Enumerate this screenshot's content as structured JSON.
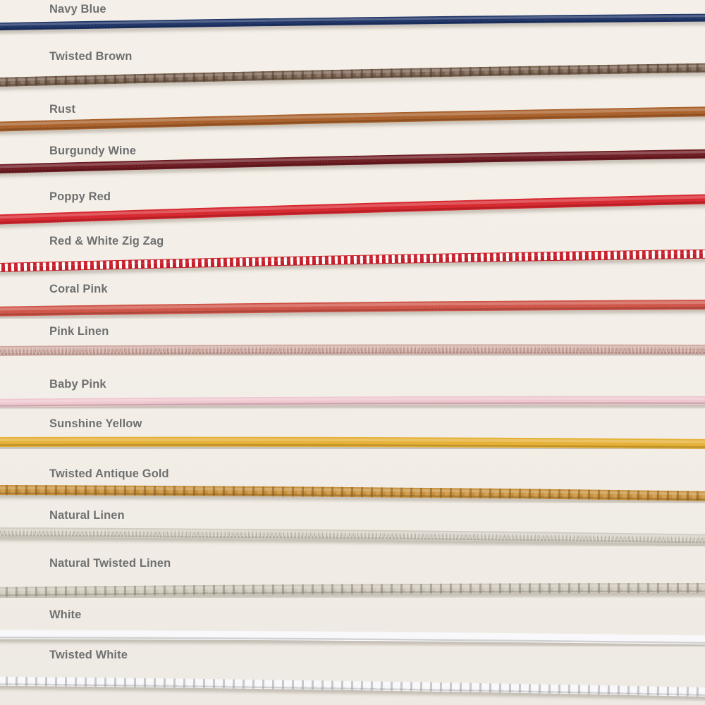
{
  "background": "#f3efe8",
  "swatches": [
    {
      "label": "Navy Blue",
      "style": "solid",
      "color": "#1f3567"
    },
    {
      "label": "Twisted Brown",
      "style": "twisted",
      "color": "#7a624f"
    },
    {
      "label": "Rust",
      "style": "solid",
      "color": "#a9602a"
    },
    {
      "label": "Burgundy Wine",
      "style": "solid",
      "color": "#6e1c22"
    },
    {
      "label": "Poppy Red",
      "style": "solid",
      "color": "#d7262e"
    },
    {
      "label": "Red & White Zig Zag",
      "style": "zigzag",
      "color": "#c8202a",
      "color2": "#ffffff"
    },
    {
      "label": "Coral Pink",
      "style": "solid",
      "color": "#cf5448"
    },
    {
      "label": "Pink Linen",
      "style": "linen",
      "color": "#cfa9a0"
    },
    {
      "label": "Baby Pink",
      "style": "solid",
      "color": "#efc7cf"
    },
    {
      "label": "Sunshine Yellow",
      "style": "solid",
      "color": "#e5b034"
    },
    {
      "label": "Twisted Antique Gold",
      "style": "twisted",
      "color": "#c9913a"
    },
    {
      "label": "Natural Linen",
      "style": "linen",
      "color": "#d2ccc1"
    },
    {
      "label": "Natural Twisted Linen",
      "style": "twisted",
      "color": "#cfc8ba"
    },
    {
      "label": "White",
      "style": "solid",
      "color": "#f8f8fa"
    },
    {
      "label": "Twisted White",
      "style": "twisted",
      "color": "#f7f7f9"
    }
  ]
}
